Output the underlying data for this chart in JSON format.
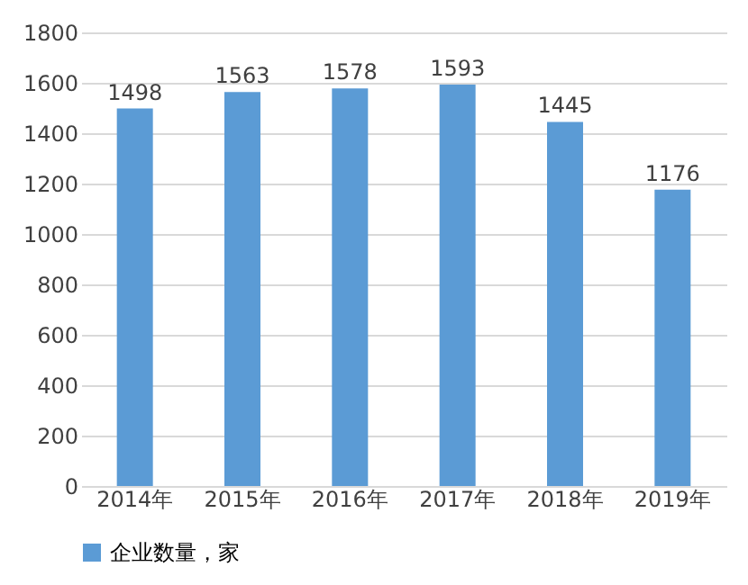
{
  "chart_data": {
    "type": "bar",
    "categories": [
      "2014年",
      "2015年",
      "2016年",
      "2017年",
      "2018年",
      "2019年"
    ],
    "series": [
      {
        "name": "企业数量，家",
        "color": "#5b9bd5",
        "values": [
          1498,
          1563,
          1578,
          1593,
          1445,
          1176
        ]
      }
    ],
    "ylim": [
      0,
      1800
    ],
    "yticks": [
      0,
      200,
      400,
      600,
      800,
      1000,
      1200,
      1400,
      1600,
      1800
    ],
    "grid": "y",
    "legend": "bottom",
    "data_labels": true
  }
}
